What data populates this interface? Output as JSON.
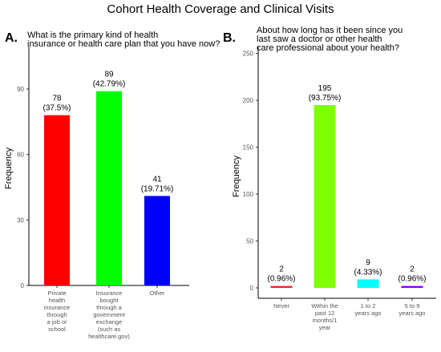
{
  "figure": {
    "title": "Cohort Health Coverage and Clinical Visits"
  },
  "chart_data": [
    {
      "type": "bar",
      "panel": "A.",
      "title": "What is the primary kind of health insurance or health care plan that you have now?",
      "xlabel": "",
      "ylabel": "Frequency",
      "ylim": [
        0,
        108
      ],
      "yticks": [
        0,
        30,
        60,
        90
      ],
      "grid": false,
      "categories": [
        "Private health insurance through a job or school",
        "Insurance bought through a government exchange (such as healthcare.gov)",
        "Other"
      ],
      "values": [
        78,
        89,
        41
      ],
      "value_labels": [
        "78",
        "89",
        "41"
      ],
      "percent_labels": [
        "(37.5%)",
        "(42.79%)",
        "(19.71%)"
      ],
      "colors": [
        "#ff0000",
        "#00ff00",
        "#0000ff"
      ]
    },
    {
      "type": "bar",
      "panel": "B.",
      "title": "About how long has it been since you last saw a doctor or other health care professional about your health?",
      "xlabel": "",
      "ylabel": "Frequency",
      "ylim": [
        0,
        254
      ],
      "yticks": [
        0,
        50,
        100,
        150,
        200,
        250
      ],
      "grid": false,
      "categories": [
        "Never",
        "Within the past 12 months/1 year",
        "1 to 2 years ago",
        "5 to 9 years ago"
      ],
      "values": [
        2,
        195,
        9,
        2
      ],
      "value_labels": [
        "2",
        "195",
        "9",
        "2"
      ],
      "percent_labels": [
        "(0.96%)",
        "(93.75%)",
        "(4.33%)",
        "(0.96%)"
      ],
      "colors": [
        "#e8262c",
        "#7fff00",
        "#00ffff",
        "#8b00ff"
      ]
    }
  ]
}
